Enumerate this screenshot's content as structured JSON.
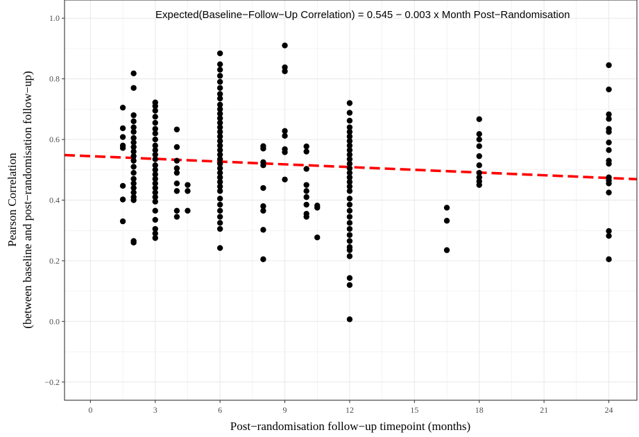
{
  "chart_data": {
    "type": "scatter",
    "title": "",
    "xlabel": "Post−randomisation follow−up timepoint (months)",
    "ylabel_lines": [
      "Pearson Correlation",
      "(between baseline and post−randomisation follow−up)"
    ],
    "annotation": "Expected(Baseline−Follow−Up Correlation) = 0.545 − 0.003 x Month Post−Randomisation",
    "xlim": [
      -1.2,
      25.3
    ],
    "ylim": [
      -0.26,
      1.06
    ],
    "x_ticks": [
      0,
      3,
      6,
      9,
      12,
      15,
      18,
      21,
      24
    ],
    "x_tick_labels": [
      "0",
      "3",
      "6",
      "9",
      "12",
      "15",
      "18",
      "21",
      "24"
    ],
    "y_ticks": [
      -0.2,
      0,
      0.2,
      0.4,
      0.6,
      0.8,
      1.0
    ],
    "y_tick_labels": [
      "−0.2",
      "0.0",
      "0.2",
      "0.4",
      "0.6",
      "0.8",
      "1.0"
    ],
    "grid": true,
    "colors": {
      "points": "#000000",
      "trend_line": "#ff0000",
      "grid": "#ebebeb",
      "border": "#333333"
    },
    "trend_line": {
      "intercept": 0.545,
      "slope": -0.003
    },
    "points": [
      {
        "x": 1.5,
        "y": 0.705
      },
      {
        "x": 1.5,
        "y": 0.637
      },
      {
        "x": 1.5,
        "y": 0.608
      },
      {
        "x": 1.5,
        "y": 0.58
      },
      {
        "x": 1.5,
        "y": 0.572
      },
      {
        "x": 1.5,
        "y": 0.447
      },
      {
        "x": 1.5,
        "y": 0.402
      },
      {
        "x": 1.5,
        "y": 0.33
      },
      {
        "x": 2,
        "y": 0.818
      },
      {
        "x": 2,
        "y": 0.77
      },
      {
        "x": 2,
        "y": 0.68
      },
      {
        "x": 2,
        "y": 0.66
      },
      {
        "x": 2,
        "y": 0.64
      },
      {
        "x": 2,
        "y": 0.625
      },
      {
        "x": 2,
        "y": 0.605
      },
      {
        "x": 2,
        "y": 0.59
      },
      {
        "x": 2,
        "y": 0.575
      },
      {
        "x": 2,
        "y": 0.56
      },
      {
        "x": 2,
        "y": 0.545
      },
      {
        "x": 2,
        "y": 0.53
      },
      {
        "x": 2,
        "y": 0.51
      },
      {
        "x": 2,
        "y": 0.49
      },
      {
        "x": 2,
        "y": 0.47
      },
      {
        "x": 2,
        "y": 0.455
      },
      {
        "x": 2,
        "y": 0.44
      },
      {
        "x": 2,
        "y": 0.425
      },
      {
        "x": 2,
        "y": 0.41
      },
      {
        "x": 2,
        "y": 0.4
      },
      {
        "x": 2,
        "y": 0.265
      },
      {
        "x": 2,
        "y": 0.26
      },
      {
        "x": 3,
        "y": 0.722
      },
      {
        "x": 3,
        "y": 0.71
      },
      {
        "x": 3,
        "y": 0.695
      },
      {
        "x": 3,
        "y": 0.675
      },
      {
        "x": 3,
        "y": 0.655
      },
      {
        "x": 3,
        "y": 0.635
      },
      {
        "x": 3,
        "y": 0.62
      },
      {
        "x": 3,
        "y": 0.6
      },
      {
        "x": 3,
        "y": 0.58
      },
      {
        "x": 3,
        "y": 0.565
      },
      {
        "x": 3,
        "y": 0.55
      },
      {
        "x": 3,
        "y": 0.535
      },
      {
        "x": 3,
        "y": 0.515
      },
      {
        "x": 3,
        "y": 0.5
      },
      {
        "x": 3,
        "y": 0.485
      },
      {
        "x": 3,
        "y": 0.47
      },
      {
        "x": 3,
        "y": 0.455
      },
      {
        "x": 3,
        "y": 0.44
      },
      {
        "x": 3,
        "y": 0.425
      },
      {
        "x": 3,
        "y": 0.41
      },
      {
        "x": 3,
        "y": 0.395
      },
      {
        "x": 3,
        "y": 0.365
      },
      {
        "x": 3,
        "y": 0.335
      },
      {
        "x": 3,
        "y": 0.305
      },
      {
        "x": 3,
        "y": 0.29
      },
      {
        "x": 3,
        "y": 0.275
      },
      {
        "x": 4,
        "y": 0.633
      },
      {
        "x": 4,
        "y": 0.575
      },
      {
        "x": 4,
        "y": 0.53
      },
      {
        "x": 4,
        "y": 0.505
      },
      {
        "x": 4,
        "y": 0.49
      },
      {
        "x": 4,
        "y": 0.455
      },
      {
        "x": 4,
        "y": 0.43
      },
      {
        "x": 4,
        "y": 0.365
      },
      {
        "x": 4,
        "y": 0.345
      },
      {
        "x": 4.5,
        "y": 0.45
      },
      {
        "x": 4.5,
        "y": 0.43
      },
      {
        "x": 4.5,
        "y": 0.365
      },
      {
        "x": 6,
        "y": 0.884
      },
      {
        "x": 6,
        "y": 0.848
      },
      {
        "x": 6,
        "y": 0.83
      },
      {
        "x": 6,
        "y": 0.81
      },
      {
        "x": 6,
        "y": 0.79
      },
      {
        "x": 6,
        "y": 0.77
      },
      {
        "x": 6,
        "y": 0.75
      },
      {
        "x": 6,
        "y": 0.735
      },
      {
        "x": 6,
        "y": 0.715
      },
      {
        "x": 6,
        "y": 0.7
      },
      {
        "x": 6,
        "y": 0.685
      },
      {
        "x": 6,
        "y": 0.67
      },
      {
        "x": 6,
        "y": 0.655
      },
      {
        "x": 6,
        "y": 0.64
      },
      {
        "x": 6,
        "y": 0.625
      },
      {
        "x": 6,
        "y": 0.61
      },
      {
        "x": 6,
        "y": 0.595
      },
      {
        "x": 6,
        "y": 0.58
      },
      {
        "x": 6,
        "y": 0.565
      },
      {
        "x": 6,
        "y": 0.55
      },
      {
        "x": 6,
        "y": 0.535
      },
      {
        "x": 6,
        "y": 0.52
      },
      {
        "x": 6,
        "y": 0.505
      },
      {
        "x": 6,
        "y": 0.49
      },
      {
        "x": 6,
        "y": 0.475
      },
      {
        "x": 6,
        "y": 0.46
      },
      {
        "x": 6,
        "y": 0.445
      },
      {
        "x": 6,
        "y": 0.43
      },
      {
        "x": 6,
        "y": 0.405
      },
      {
        "x": 6,
        "y": 0.385
      },
      {
        "x": 6,
        "y": 0.365
      },
      {
        "x": 6,
        "y": 0.345
      },
      {
        "x": 6,
        "y": 0.325
      },
      {
        "x": 6,
        "y": 0.305
      },
      {
        "x": 6,
        "y": 0.242
      },
      {
        "x": 8,
        "y": 0.578
      },
      {
        "x": 8,
        "y": 0.57
      },
      {
        "x": 8,
        "y": 0.525
      },
      {
        "x": 8,
        "y": 0.515
      },
      {
        "x": 8,
        "y": 0.44
      },
      {
        "x": 8,
        "y": 0.38
      },
      {
        "x": 8,
        "y": 0.365
      },
      {
        "x": 8,
        "y": 0.302
      },
      {
        "x": 8,
        "y": 0.205
      },
      {
        "x": 9,
        "y": 0.91
      },
      {
        "x": 9,
        "y": 0.838
      },
      {
        "x": 9,
        "y": 0.825
      },
      {
        "x": 9,
        "y": 0.628
      },
      {
        "x": 9,
        "y": 0.612
      },
      {
        "x": 9,
        "y": 0.568
      },
      {
        "x": 9,
        "y": 0.558
      },
      {
        "x": 9,
        "y": 0.468
      },
      {
        "x": 10,
        "y": 0.577
      },
      {
        "x": 10,
        "y": 0.56
      },
      {
        "x": 10,
        "y": 0.503
      },
      {
        "x": 10,
        "y": 0.45
      },
      {
        "x": 10,
        "y": 0.43
      },
      {
        "x": 10,
        "y": 0.41
      },
      {
        "x": 10,
        "y": 0.385
      },
      {
        "x": 10,
        "y": 0.355
      },
      {
        "x": 10,
        "y": 0.345
      },
      {
        "x": 10.5,
        "y": 0.382
      },
      {
        "x": 10.5,
        "y": 0.375
      },
      {
        "x": 10.5,
        "y": 0.277
      },
      {
        "x": 12,
        "y": 0.72
      },
      {
        "x": 12,
        "y": 0.688
      },
      {
        "x": 12,
        "y": 0.662
      },
      {
        "x": 12,
        "y": 0.64
      },
      {
        "x": 12,
        "y": 0.625
      },
      {
        "x": 12,
        "y": 0.61
      },
      {
        "x": 12,
        "y": 0.595
      },
      {
        "x": 12,
        "y": 0.58
      },
      {
        "x": 12,
        "y": 0.565
      },
      {
        "x": 12,
        "y": 0.55
      },
      {
        "x": 12,
        "y": 0.535
      },
      {
        "x": 12,
        "y": 0.52
      },
      {
        "x": 12,
        "y": 0.505
      },
      {
        "x": 12,
        "y": 0.49
      },
      {
        "x": 12,
        "y": 0.475
      },
      {
        "x": 12,
        "y": 0.46
      },
      {
        "x": 12,
        "y": 0.445
      },
      {
        "x": 12,
        "y": 0.43
      },
      {
        "x": 12,
        "y": 0.405
      },
      {
        "x": 12,
        "y": 0.385
      },
      {
        "x": 12,
        "y": 0.365
      },
      {
        "x": 12,
        "y": 0.345
      },
      {
        "x": 12,
        "y": 0.325
      },
      {
        "x": 12,
        "y": 0.305
      },
      {
        "x": 12,
        "y": 0.285
      },
      {
        "x": 12,
        "y": 0.265
      },
      {
        "x": 12,
        "y": 0.245
      },
      {
        "x": 12,
        "y": 0.235
      },
      {
        "x": 12,
        "y": 0.215
      },
      {
        "x": 12,
        "y": 0.143
      },
      {
        "x": 12,
        "y": 0.12
      },
      {
        "x": 12,
        "y": 0.007
      },
      {
        "x": 16.5,
        "y": 0.375
      },
      {
        "x": 16.5,
        "y": 0.332
      },
      {
        "x": 16.5,
        "y": 0.235
      },
      {
        "x": 18,
        "y": 0.667
      },
      {
        "x": 18,
        "y": 0.618
      },
      {
        "x": 18,
        "y": 0.6
      },
      {
        "x": 18,
        "y": 0.578
      },
      {
        "x": 18,
        "y": 0.545
      },
      {
        "x": 18,
        "y": 0.515
      },
      {
        "x": 18,
        "y": 0.49
      },
      {
        "x": 18,
        "y": 0.475
      },
      {
        "x": 18,
        "y": 0.462
      },
      {
        "x": 18,
        "y": 0.45
      },
      {
        "x": 24,
        "y": 0.845
      },
      {
        "x": 24,
        "y": 0.765
      },
      {
        "x": 24,
        "y": 0.683
      },
      {
        "x": 24,
        "y": 0.668
      },
      {
        "x": 24,
        "y": 0.635
      },
      {
        "x": 24,
        "y": 0.625
      },
      {
        "x": 24,
        "y": 0.59
      },
      {
        "x": 24,
        "y": 0.565
      },
      {
        "x": 24,
        "y": 0.53
      },
      {
        "x": 24,
        "y": 0.52
      },
      {
        "x": 24,
        "y": 0.475
      },
      {
        "x": 24,
        "y": 0.465
      },
      {
        "x": 24,
        "y": 0.455
      },
      {
        "x": 24,
        "y": 0.425
      },
      {
        "x": 24,
        "y": 0.298
      },
      {
        "x": 24,
        "y": 0.282
      },
      {
        "x": 24,
        "y": 0.205
      }
    ]
  }
}
